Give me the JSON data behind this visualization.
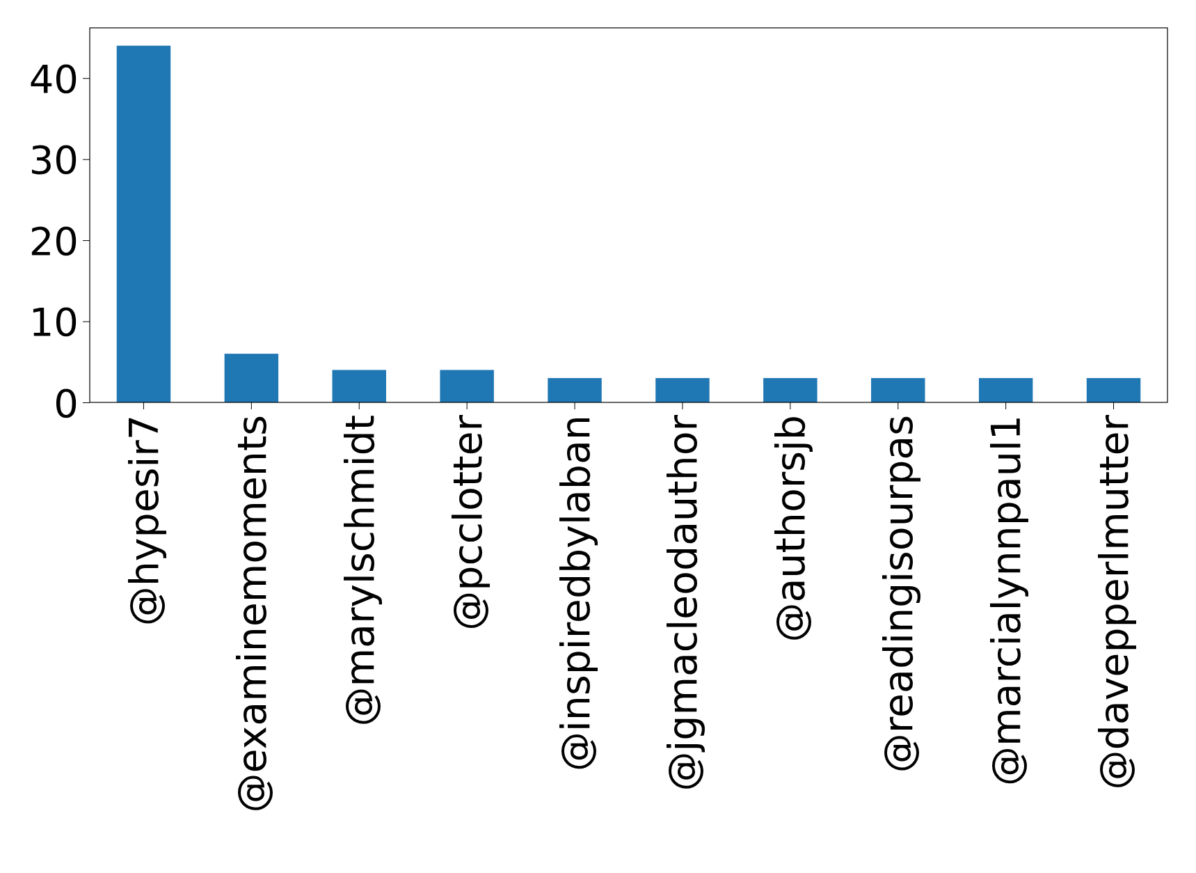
{
  "chart_data": {
    "type": "bar",
    "categories": [
      "@hypesir7",
      "@examinemoments",
      "@marylschmidt",
      "@pcclotter",
      "@inspiredbylaban",
      "@jgmacleodauthor",
      "@authorsjb",
      "@readingisourpas",
      "@marcialynnpaul1",
      "@davepperlmutter"
    ],
    "values": [
      44,
      6,
      4,
      4,
      3,
      3,
      3,
      3,
      3,
      3
    ],
    "color": "#1f77b4",
    "ylim": [
      0,
      46.2
    ],
    "yticks": [
      0,
      10,
      20,
      30,
      40
    ]
  }
}
